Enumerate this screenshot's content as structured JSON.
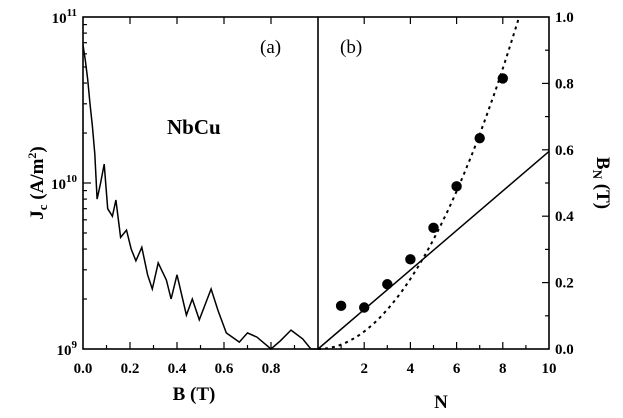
{
  "chart_data": [
    {
      "panel_label": "(a)",
      "type": "line",
      "annotation": "NbCu",
      "xlabel": "B (T)",
      "ylabel": "J_c (A/m^2)",
      "y_scale": "log",
      "xlim": [
        0,
        1.0
      ],
      "ylim": [
        1000000000.0,
        100000000000.0
      ],
      "x_ticks": [
        {
          "v": 0.0,
          "label": "0.0"
        },
        {
          "v": 0.2,
          "label": "0.2"
        },
        {
          "v": 0.4,
          "label": "0.4"
        },
        {
          "v": 0.6,
          "label": "0.6"
        },
        {
          "v": 0.8,
          "label": "0.8"
        }
      ],
      "y_ticks": [
        {
          "v": 9,
          "base": "10",
          "exp": "9"
        },
        {
          "v": 10,
          "base": "10",
          "exp": "10"
        },
        {
          "v": 11,
          "base": "10",
          "exp": "11"
        }
      ],
      "x": [
        0.0,
        0.01,
        0.02,
        0.03,
        0.04,
        0.05,
        0.06,
        0.075,
        0.09,
        0.105,
        0.125,
        0.14,
        0.16,
        0.185,
        0.205,
        0.225,
        0.25,
        0.275,
        0.295,
        0.32,
        0.355,
        0.375,
        0.4,
        0.44,
        0.465,
        0.495,
        0.545,
        0.575,
        0.61,
        0.665,
        0.7,
        0.74,
        0.8,
        0.84,
        0.885,
        0.935,
        0.97,
        1.0
      ],
      "y": [
        68000000000.0,
        55000000000.0,
        42000000000.0,
        30000000000.0,
        22000000000.0,
        15000000000.0,
        8000000000.0,
        10000000000.0,
        13000000000.0,
        7000000000.0,
        6300000000.0,
        7900000000.0,
        4700000000.0,
        5200000000.0,
        4000000000.0,
        3400000000.0,
        4100000000.0,
        2800000000.0,
        2300000000.0,
        3300000000.0,
        2600000000.0,
        2000000000.0,
        2800000000.0,
        1600000000.0,
        2000000000.0,
        1500000000.0,
        2300000000.0,
        1700000000.0,
        1250000000.0,
        1100000000.0,
        1250000000.0,
        1180000000.0,
        1000000000.0,
        1120000000.0,
        1300000000.0,
        1150000000.0,
        1000000000.0,
        1000000000.0
      ]
    },
    {
      "panel_label": "(b)",
      "type": "scatter",
      "xlabel": "N",
      "ylabel": "B_N (T)",
      "xlim": [
        0,
        10
      ],
      "ylim": [
        0,
        1.0
      ],
      "x_ticks": [
        2,
        4,
        6,
        8,
        10
      ],
      "y_ticks": [
        "0.0",
        "0.2",
        "0.4",
        "0.6",
        "0.8",
        "1.0"
      ],
      "series": [
        {
          "style": "points",
          "x": [
            1,
            2,
            3,
            4,
            5,
            6,
            7,
            8
          ],
          "y": [
            0.13,
            0.125,
            0.195,
            0.27,
            0.365,
            0.49,
            0.635,
            0.815
          ]
        },
        {
          "style": "solid line",
          "x": [
            0,
            10
          ],
          "y": [
            0,
            0.595
          ]
        },
        {
          "style": "dotted curve",
          "form": "y = a*x^2",
          "a": 0.0132,
          "x_range": [
            0,
            10
          ]
        }
      ]
    }
  ]
}
